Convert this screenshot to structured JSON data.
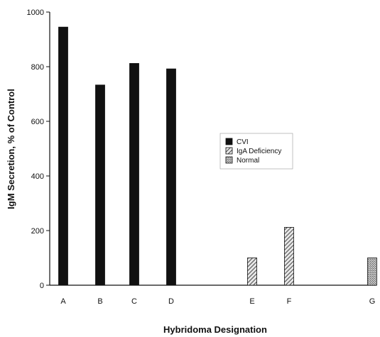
{
  "chart_data": {
    "type": "bar",
    "title": "",
    "xlabel": "Hybridoma Designation",
    "ylabel": "IgM Secretion, % of Control",
    "ylim": [
      0,
      1000
    ],
    "yticks": [
      0,
      200,
      400,
      600,
      800,
      1000
    ],
    "grid": false,
    "legend_position": "center-right",
    "categories": [
      "A",
      "B",
      "C",
      "D",
      "E",
      "F",
      "G"
    ],
    "series": [
      {
        "name": "CVI",
        "pattern": "solid",
        "color": "#111111",
        "values": [
          945,
          733,
          812,
          792,
          null,
          null,
          null
        ]
      },
      {
        "name": "IgA Deficiency",
        "pattern": "hatched",
        "color": "#555555",
        "values": [
          null,
          null,
          null,
          null,
          100,
          212,
          null
        ]
      },
      {
        "name": "Normal",
        "pattern": "stipple",
        "color": "#777777",
        "values": [
          null,
          null,
          null,
          null,
          null,
          null,
          100
        ]
      }
    ]
  }
}
